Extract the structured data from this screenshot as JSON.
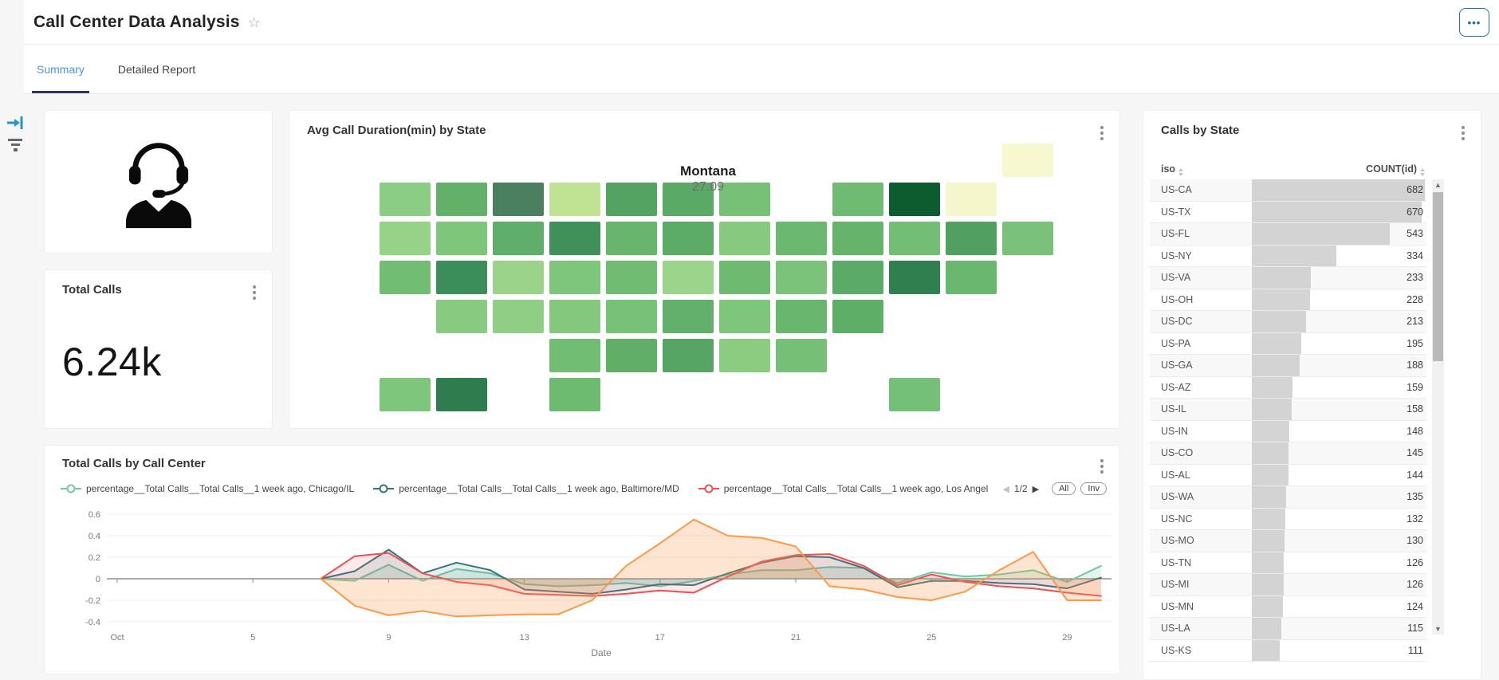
{
  "header": {
    "title": "Call Center Data Analysis",
    "star": "☆",
    "more": "•••"
  },
  "tabs": [
    {
      "label": "Summary",
      "active": true
    },
    {
      "label": "Detailed Report",
      "active": false
    }
  ],
  "colors": {
    "tab_active_text": "#4b96d8",
    "tab_ink_bar": "#28395c",
    "more_button": "#1a6fad",
    "table_bar": "#cdcdcd",
    "axis": "#8f8f8f",
    "grid": "#ededed"
  },
  "total_calls_card": {
    "title": "Total Calls",
    "value": "6.24k"
  },
  "map_card": {
    "title": "Avg Call Duration(min) by State",
    "tooltip": {
      "state": "Montana",
      "value": "27.09"
    },
    "states": [
      {
        "id": "ME",
        "col": 11,
        "row": 0,
        "color": "#f7f7d0"
      },
      {
        "id": "WA",
        "col": 0,
        "row": 1,
        "color": "#8ccd85"
      },
      {
        "id": "ID",
        "col": 1,
        "row": 1,
        "color": "#63b06a"
      },
      {
        "id": "MT",
        "col": 2,
        "row": 1,
        "color": "#4c7f5f"
      },
      {
        "id": "ND",
        "col": 3,
        "row": 1,
        "color": "#bfe392"
      },
      {
        "id": "MN",
        "col": 4,
        "row": 1,
        "color": "#55a363"
      },
      {
        "id": "WI",
        "col": 5,
        "row": 1,
        "color": "#5aa966"
      },
      {
        "id": "MI",
        "col": 6,
        "row": 1,
        "color": "#77c078"
      },
      {
        "id": "NY",
        "col": 8,
        "row": 1,
        "color": "#6fbb73"
      },
      {
        "id": "VT",
        "col": 9,
        "row": 1,
        "color": "#0d5c30"
      },
      {
        "id": "NH",
        "col": 10,
        "row": 1,
        "color": "#f5f6cb"
      },
      {
        "id": "OR",
        "col": 0,
        "row": 2,
        "color": "#97d289"
      },
      {
        "id": "NV",
        "col": 1,
        "row": 2,
        "color": "#7ec679"
      },
      {
        "id": "WY",
        "col": 2,
        "row": 2,
        "color": "#5fae6c"
      },
      {
        "id": "SD",
        "col": 3,
        "row": 2,
        "color": "#3f9159"
      },
      {
        "id": "IA",
        "col": 4,
        "row": 2,
        "color": "#68b56e"
      },
      {
        "id": "IL",
        "col": 5,
        "row": 2,
        "color": "#5cab67"
      },
      {
        "id": "IN",
        "col": 6,
        "row": 2,
        "color": "#86c97f"
      },
      {
        "id": "OH",
        "col": 7,
        "row": 2,
        "color": "#6bb870"
      },
      {
        "id": "PA",
        "col": 8,
        "row": 2,
        "color": "#66b46c"
      },
      {
        "id": "NJ",
        "col": 9,
        "row": 2,
        "color": "#73be75"
      },
      {
        "id": "CT",
        "col": 10,
        "row": 2,
        "color": "#51a062"
      },
      {
        "id": "MA",
        "col": 11,
        "row": 2,
        "color": "#7ac27b"
      },
      {
        "id": "CA",
        "col": 0,
        "row": 3,
        "color": "#70bd73"
      },
      {
        "id": "UT",
        "col": 1,
        "row": 3,
        "color": "#3b8d5a"
      },
      {
        "id": "CO",
        "col": 2,
        "row": 3,
        "color": "#9bd38a"
      },
      {
        "id": "NE",
        "col": 3,
        "row": 3,
        "color": "#7ec67b"
      },
      {
        "id": "MO",
        "col": 4,
        "row": 3,
        "color": "#70bc73"
      },
      {
        "id": "KY",
        "col": 5,
        "row": 3,
        "color": "#9dd48c"
      },
      {
        "id": "WV",
        "col": 6,
        "row": 3,
        "color": "#6eba71"
      },
      {
        "id": "VA",
        "col": 7,
        "row": 3,
        "color": "#7bc37b"
      },
      {
        "id": "MD",
        "col": 8,
        "row": 3,
        "color": "#5caa67"
      },
      {
        "id": "DE",
        "col": 9,
        "row": 3,
        "color": "#30804f"
      },
      {
        "id": "RI",
        "col": 10,
        "row": 3,
        "color": "#6ab86f"
      },
      {
        "id": "AZ",
        "col": 1,
        "row": 4,
        "color": "#88ca7f"
      },
      {
        "id": "NM",
        "col": 2,
        "row": 4,
        "color": "#90ce85"
      },
      {
        "id": "KS",
        "col": 3,
        "row": 4,
        "color": "#83c87d"
      },
      {
        "id": "AR",
        "col": 4,
        "row": 4,
        "color": "#78c179"
      },
      {
        "id": "TN",
        "col": 5,
        "row": 4,
        "color": "#62b06b"
      },
      {
        "id": "NC",
        "col": 6,
        "row": 4,
        "color": "#7ec67c"
      },
      {
        "id": "SC",
        "col": 7,
        "row": 4,
        "color": "#69b66f"
      },
      {
        "id": "DC",
        "col": 8,
        "row": 4,
        "color": "#5fae68"
      },
      {
        "id": "OK",
        "col": 3,
        "row": 5,
        "color": "#72bd74"
      },
      {
        "id": "LA",
        "col": 4,
        "row": 5,
        "color": "#60ae68"
      },
      {
        "id": "MS",
        "col": 5,
        "row": 5,
        "color": "#56a564"
      },
      {
        "id": "AL",
        "col": 6,
        "row": 5,
        "color": "#8bcc81"
      },
      {
        "id": "GA",
        "col": 7,
        "row": 5,
        "color": "#75bf77"
      },
      {
        "id": "AK",
        "col": 0,
        "row": 6,
        "color": "#7ec67b"
      },
      {
        "id": "HI",
        "col": 1,
        "row": 6,
        "color": "#2f7d4f"
      },
      {
        "id": "TX",
        "col": 3,
        "row": 6,
        "color": "#6dba71"
      },
      {
        "id": "FL",
        "col": 9,
        "row": 6,
        "color": "#75c078"
      }
    ]
  },
  "line_card": {
    "title": "Total Calls by Call Center",
    "legend": [
      {
        "label": "percentage__Total Calls__Total Calls__1 week ago, Chicago/IL",
        "color": "#6fc9a3"
      },
      {
        "label": "percentage__Total Calls__Total Calls__1 week ago, Baltimore/MD",
        "color": "#36737b"
      },
      {
        "label": "percentage__Total Calls__Total Calls__1 week ago, Los Angel",
        "color": "#ea5254"
      }
    ],
    "pager": {
      "prev": "◀",
      "label": "1/2",
      "next": "▶"
    },
    "buttons": {
      "all": "All",
      "inv": "Inv"
    },
    "chart_data": {
      "type": "line",
      "xlabel": "Date",
      "ylim": [
        -0.45,
        0.65
      ],
      "yticks": [
        0.6,
        0.4,
        0.2,
        0,
        -0.2,
        -0.4
      ],
      "xticks": [
        {
          "day": 1,
          "label": "Oct"
        },
        {
          "day": 5,
          "label": "5"
        },
        {
          "day": 9,
          "label": "9"
        },
        {
          "day": 13,
          "label": "13"
        },
        {
          "day": 17,
          "label": "17"
        },
        {
          "day": 21,
          "label": "21"
        },
        {
          "day": 25,
          "label": "25"
        },
        {
          "day": 29,
          "label": "29"
        }
      ],
      "x_days": [
        7,
        8,
        9,
        10,
        11,
        12,
        13,
        14,
        15,
        16,
        17,
        18,
        19,
        20,
        21,
        22,
        23,
        24,
        25,
        26,
        27,
        28,
        29,
        30
      ],
      "series": [
        {
          "name": "percentage__Total Calls__Total Calls__1 week ago, Chicago/IL",
          "color": "#6fc9a3",
          "fill_opacity": 0.2,
          "values": [
            0,
            -0.02,
            0.13,
            -0.02,
            0.09,
            0.05,
            -0.05,
            -0.07,
            -0.06,
            -0.04,
            -0.07,
            -0.02,
            0.04,
            0.08,
            0.08,
            0.11,
            0.1,
            -0.04,
            0.06,
            0.02,
            0.04,
            0.08,
            -0.03,
            0.12
          ]
        },
        {
          "name": "percentage__Total Calls__Total Calls__1 week ago, Baltimore/MD",
          "color": "#36737b",
          "fill_opacity": 0.12,
          "values": [
            0,
            0.07,
            0.27,
            0.05,
            0.15,
            0.08,
            -0.1,
            -0.12,
            -0.14,
            -0.1,
            -0.05,
            -0.06,
            0.05,
            0.15,
            0.21,
            0.2,
            0.1,
            -0.08,
            -0.02,
            -0.02,
            -0.04,
            -0.05,
            -0.09,
            0.01
          ]
        },
        {
          "name": "percentage__Total Calls__Total Calls__1 week ago, Los Angel",
          "color": "#ea5254",
          "fill_opacity": 0.13,
          "values": [
            0,
            0.21,
            0.24,
            0.05,
            -0.03,
            -0.06,
            -0.14,
            -0.15,
            -0.16,
            -0.14,
            -0.11,
            -0.13,
            0.02,
            0.16,
            0.22,
            0.23,
            0.12,
            -0.06,
            0.04,
            -0.03,
            -0.07,
            -0.09,
            -0.13,
            -0.16
          ]
        },
        {
          "name": "",
          "color": "#fb9949",
          "fill_opacity": 0.25,
          "values": [
            0,
            -0.25,
            -0.34,
            -0.3,
            -0.35,
            -0.34,
            -0.33,
            -0.33,
            -0.2,
            0.12,
            0.33,
            0.55,
            0.4,
            0.38,
            0.3,
            -0.07,
            -0.1,
            -0.17,
            -0.2,
            -0.12,
            0.08,
            0.25,
            -0.2,
            -0.2
          ]
        }
      ]
    }
  },
  "table_card": {
    "title": "Calls by State",
    "columns": [
      {
        "label": "iso"
      },
      {
        "label": "COUNT(id)"
      }
    ],
    "max_count": 682,
    "rows": [
      {
        "iso": "US-CA",
        "count": 682
      },
      {
        "iso": "US-TX",
        "count": 670
      },
      {
        "iso": "US-FL",
        "count": 543
      },
      {
        "iso": "US-NY",
        "count": 334
      },
      {
        "iso": "US-VA",
        "count": 233
      },
      {
        "iso": "US-OH",
        "count": 228
      },
      {
        "iso": "US-DC",
        "count": 213
      },
      {
        "iso": "US-PA",
        "count": 195
      },
      {
        "iso": "US-GA",
        "count": 188
      },
      {
        "iso": "US-AZ",
        "count": 159
      },
      {
        "iso": "US-IL",
        "count": 158
      },
      {
        "iso": "US-IN",
        "count": 148
      },
      {
        "iso": "US-CO",
        "count": 145
      },
      {
        "iso": "US-AL",
        "count": 144
      },
      {
        "iso": "US-WA",
        "count": 135
      },
      {
        "iso": "US-NC",
        "count": 132
      },
      {
        "iso": "US-MO",
        "count": 130
      },
      {
        "iso": "US-TN",
        "count": 126
      },
      {
        "iso": "US-MI",
        "count": 126
      },
      {
        "iso": "US-MN",
        "count": 124
      },
      {
        "iso": "US-LA",
        "count": 115
      },
      {
        "iso": "US-KS",
        "count": 111
      }
    ]
  }
}
